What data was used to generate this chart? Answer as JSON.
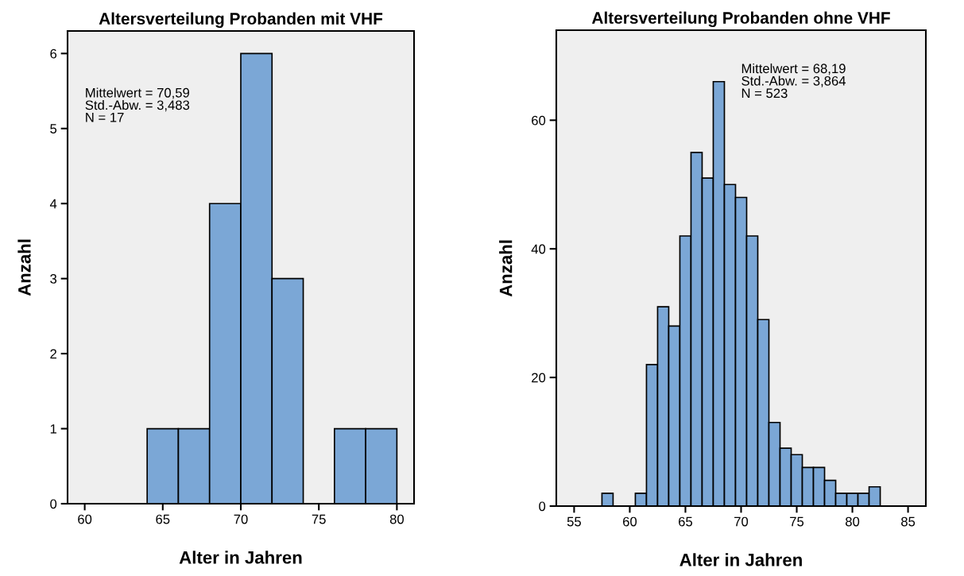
{
  "chart_data": [
    {
      "type": "histogram",
      "title": "Altersverteilung Probanden mit VHF",
      "xlabel": "Alter in Jahren",
      "ylabel": "Anzahl",
      "bins": [
        64,
        66,
        68,
        70,
        72,
        74,
        76,
        78,
        80
      ],
      "values": [
        1,
        1,
        4,
        6,
        3,
        0,
        1,
        1
      ],
      "color": "#7ba7d6",
      "xlim": [
        58.9,
        81.1
      ],
      "xticks": [
        60,
        65,
        70,
        75,
        80
      ],
      "ylim": [
        0,
        6.3
      ],
      "yticks": [
        0,
        1,
        2,
        3,
        4,
        5,
        6
      ],
      "annotations": [
        "Mittelwert = 70,59\nStd.-Abw. = 3,483\nN = 17"
      ],
      "grid": false,
      "legend": false
    },
    {
      "type": "histogram",
      "title": "Altersverteilung Probanden ohne VHF",
      "xlabel": "Alter in Jahren",
      "ylabel": "Anzahl",
      "bins": [
        57.5,
        58.5,
        59.5,
        60.5,
        61.5,
        62.5,
        63.5,
        64.5,
        65.5,
        66.5,
        67.5,
        68.5,
        69.5,
        70.5,
        71.5,
        72.5,
        73.5,
        74.5,
        75.5,
        76.5,
        77.5,
        78.5,
        79.5,
        80.5,
        81.5,
        82.5
      ],
      "values": [
        2,
        0,
        0,
        2,
        22,
        31,
        28,
        42,
        55,
        51,
        66,
        50,
        48,
        42,
        29,
        13,
        9,
        8,
        6,
        6,
        4,
        2,
        2,
        2,
        3
      ],
      "color": "#7ba7d6",
      "xlim": [
        53.4,
        86.6
      ],
      "xticks": [
        55,
        60,
        65,
        70,
        75,
        80,
        85
      ],
      "ylim": [
        0,
        74
      ],
      "yticks": [
        0,
        20,
        40,
        60
      ],
      "annotations": [
        "Mittelwert = 68,19\nStd.-Abw. = 3,864\nN = 523"
      ],
      "grid": false,
      "legend": false
    }
  ]
}
